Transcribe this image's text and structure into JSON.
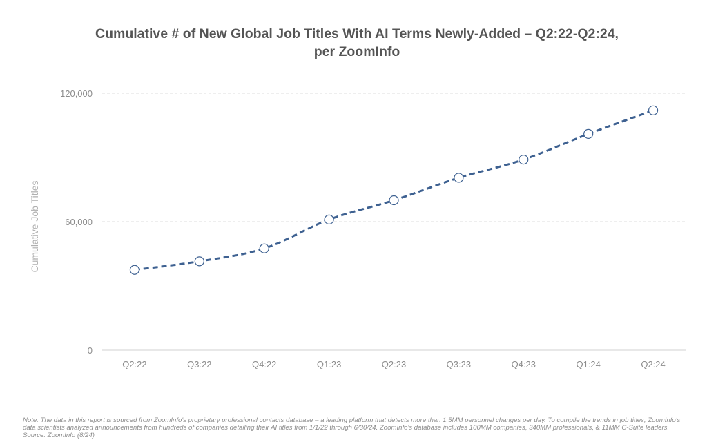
{
  "title_lines": [
    "Cumulative # of New Global Job Titles With AI Terms Newly-Added – Q2:22-Q2:24,",
    "per ZoomInfo"
  ],
  "note": "Note: The data in this report is sourced from ZoomInfo's proprietary professional contacts database – a leading platform that detects more than 1.5MM personnel changes per day. To compile the trends in job titles, ZoomInfo's data scientists analyzed announcements from hundreds of companies detailing their AI titles from 1/1/22 through 6/30/24. ZoomInfo's database includes 100MM companies, 340MM professionals, & 11MM C-Suite leaders. Source: ZoomInfo (8/24)",
  "colors": {
    "line": "#3e6191",
    "marker_fill": "#ffffff",
    "grid": "#dddddd",
    "tick_text": "#8c8c8c",
    "axis_label": "#b0b0b0"
  },
  "chart_data": {
    "type": "line",
    "title": "Cumulative # of New Global Job Titles With AI Terms Newly-Added – Q2:22-Q2:24, per ZoomInfo",
    "xlabel": "",
    "ylabel": "Cumulative Job Titles",
    "categories": [
      "Q2:22",
      "Q3:22",
      "Q4:22",
      "Q1:23",
      "Q2:23",
      "Q3:23",
      "Q4:23",
      "Q1:24",
      "Q2:24"
    ],
    "series": [
      {
        "values": [
          37500,
          41500,
          47500,
          61000,
          70000,
          80500,
          89000,
          101000,
          112000
        ],
        "line_style": "dashed",
        "marker": "hollow-circle"
      }
    ],
    "ylim": [
      0,
      120000
    ],
    "yticks": [
      0,
      60000,
      120000
    ],
    "ytick_labels": [
      "0",
      "60,000",
      "120,000"
    ],
    "grid": "horizontal-dashed",
    "legend": "none"
  }
}
